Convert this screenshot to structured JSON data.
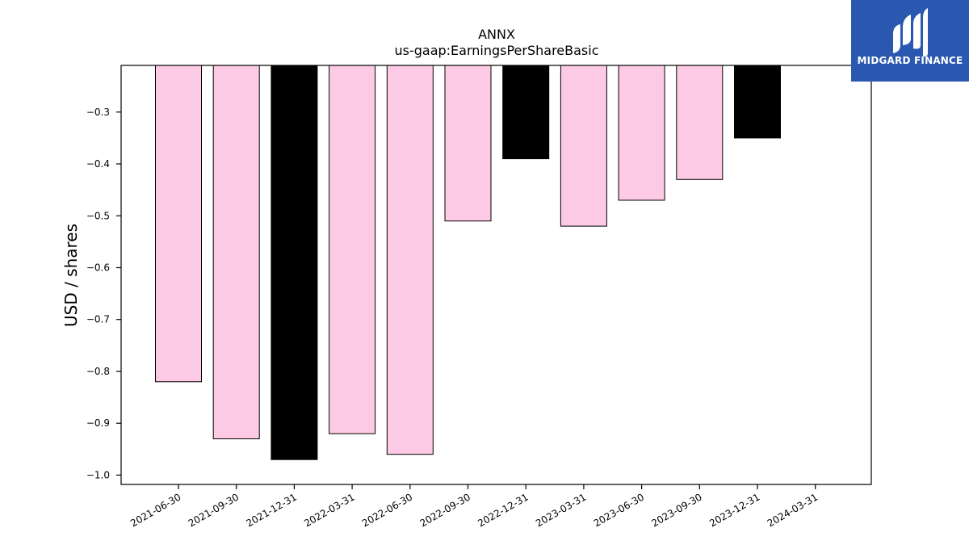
{
  "brand": {
    "name": "MIDGARD FINANCE",
    "bg_color": "#2a58b0",
    "icon": "midgard-logo-icon"
  },
  "chart_data": {
    "type": "bar",
    "title": "ANNX",
    "subtitle": "us-gaap:EarningsPerShareBasic",
    "xlabel": "",
    "ylabel": "USD / shares",
    "categories": [
      "2021-06-30",
      "2021-09-30",
      "2021-12-31",
      "2022-03-31",
      "2022-06-30",
      "2022-09-30",
      "2022-12-31",
      "2023-03-31",
      "2023-06-30",
      "2023-09-30",
      "2023-12-31",
      "2024-03-31"
    ],
    "values": [
      -0.82,
      -0.93,
      -0.97,
      -0.92,
      -0.96,
      -0.51,
      -0.39,
      -0.52,
      -0.47,
      -0.43,
      -0.35,
      null
    ],
    "bar_colors": [
      "#fccae4",
      "#fccae4",
      "#000000",
      "#fccae4",
      "#fccae4",
      "#fccae4",
      "#000000",
      "#fccae4",
      "#fccae4",
      "#fccae4",
      "#000000",
      "#fccae4"
    ],
    "yticks": [
      -0.3,
      -0.4,
      -0.5,
      -0.6,
      -0.7,
      -0.8,
      -0.9,
      -1.0
    ],
    "ytick_labels": [
      "−0.3",
      "−0.4",
      "−0.5",
      "−0.6",
      "−0.7",
      "−0.8",
      "−0.9",
      "−1.0"
    ],
    "ylim": [
      -1.018,
      -0.21
    ],
    "grid": false,
    "legend": false
  }
}
